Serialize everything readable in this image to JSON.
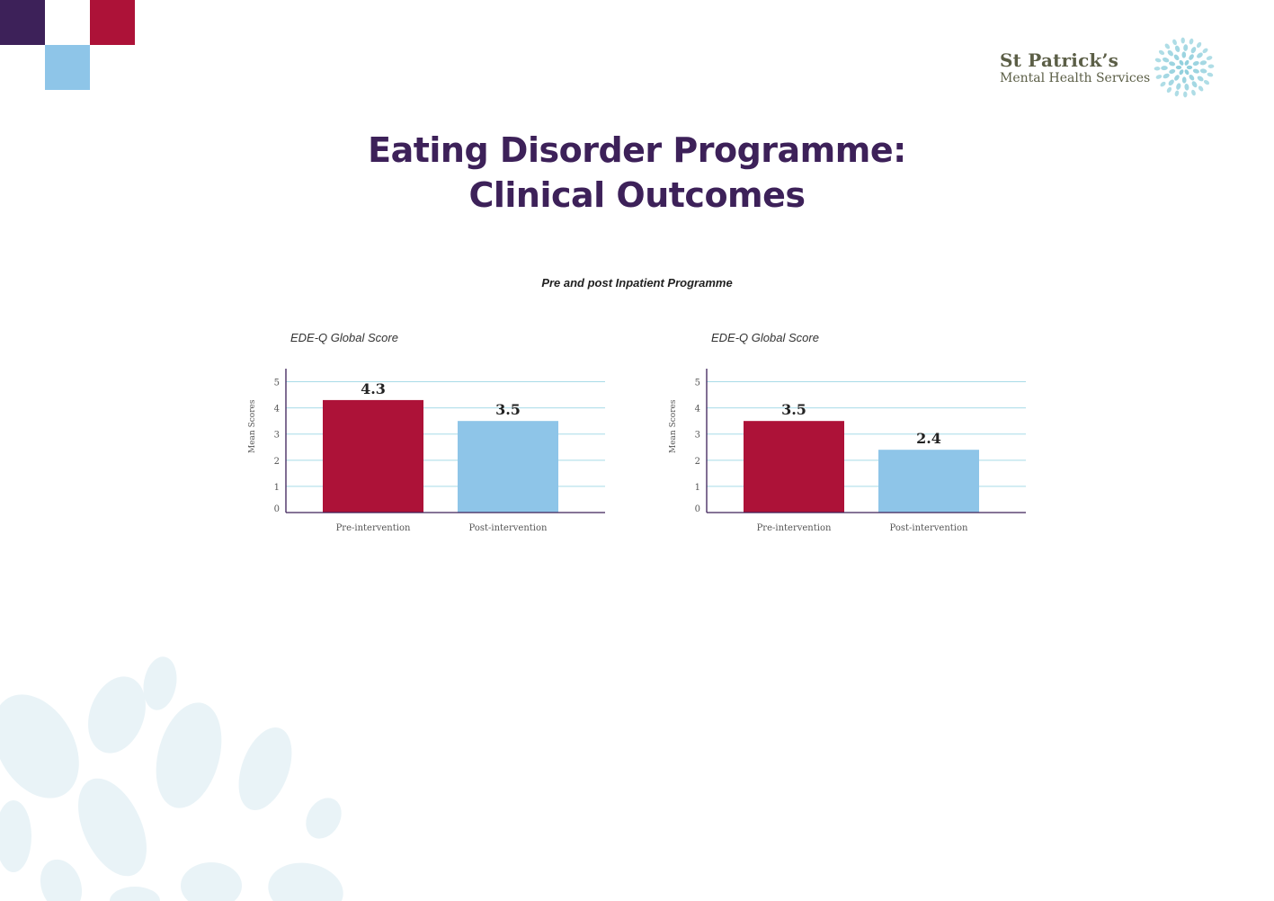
{
  "colors": {
    "purple": "#3d2159",
    "red": "#ad1238",
    "light_blue": "#8ec5e8",
    "gridline": "#a8dbe8",
    "logo_teal": "#86cbd9",
    "logo_text": "#5b5e46",
    "decor": "#e9f3f7"
  },
  "logo": {
    "name": "St Patrick’s",
    "subtitle": "Mental Health Services",
    "icon": "flower-logo-icon"
  },
  "title_line1": "Eating Disorder Programme:",
  "title_line2": "Clinical Outcomes",
  "subtitle": "Pre and post Inpatient Programme",
  "chart_data": [
    {
      "type": "bar",
      "title": "EDE-Q Global Score",
      "ylabel": "Mean Scores",
      "xlabel": "",
      "categories": [
        "Pre-intervention",
        "Post-intervention"
      ],
      "values": [
        4.3,
        3.5
      ],
      "data_labels": [
        "4.3",
        "3.5"
      ],
      "bar_colors": [
        "#ad1238",
        "#8ec5e8"
      ],
      "ylim": [
        0,
        5.5
      ],
      "yticks": [
        0,
        1,
        2,
        3,
        4,
        5
      ],
      "grid": true
    },
    {
      "type": "bar",
      "title": "EDE-Q Global Score",
      "ylabel": "Mean Scores",
      "xlabel": "",
      "categories": [
        "Pre-intervention",
        "Post-intervention"
      ],
      "values": [
        3.5,
        2.4
      ],
      "data_labels": [
        "3.5",
        "2.4"
      ],
      "bar_colors": [
        "#ad1238",
        "#8ec5e8"
      ],
      "ylim": [
        0,
        5.5
      ],
      "yticks": [
        0,
        1,
        2,
        3,
        4,
        5
      ],
      "grid": true
    }
  ]
}
